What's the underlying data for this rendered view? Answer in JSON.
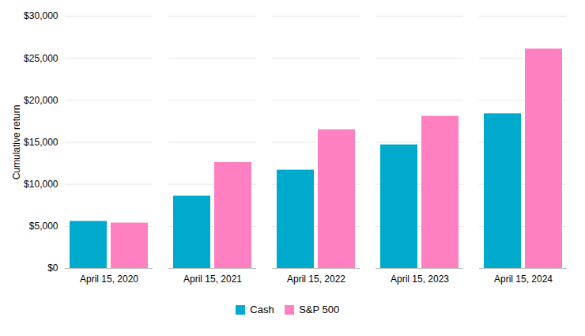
{
  "chart_data": {
    "type": "bar",
    "categories": [
      "April 15, 2020",
      "April 15, 2021",
      "April 15, 2022",
      "April 15, 2023",
      "April 15, 2024"
    ],
    "series": [
      {
        "name": "Cash",
        "color": "#00AACC",
        "values": [
          5600,
          8600,
          11700,
          14700,
          18400
        ]
      },
      {
        "name": "S&P 500",
        "color": "#FF80C0",
        "values": [
          5400,
          12600,
          16500,
          18100,
          26100
        ]
      }
    ],
    "ylabel": "Cumulative return",
    "ylim": [
      0,
      30000
    ],
    "yticks": [
      {
        "value": 0,
        "label": "$0"
      },
      {
        "value": 5000,
        "label": "$5,000"
      },
      {
        "value": 10000,
        "label": "$10,000"
      },
      {
        "value": 15000,
        "label": "$15,000"
      },
      {
        "value": 20000,
        "label": "$20,000"
      },
      {
        "value": 25000,
        "label": "$25,000"
      },
      {
        "value": 30000,
        "label": "$30,000"
      }
    ],
    "grid": true,
    "legend": "bottom"
  }
}
